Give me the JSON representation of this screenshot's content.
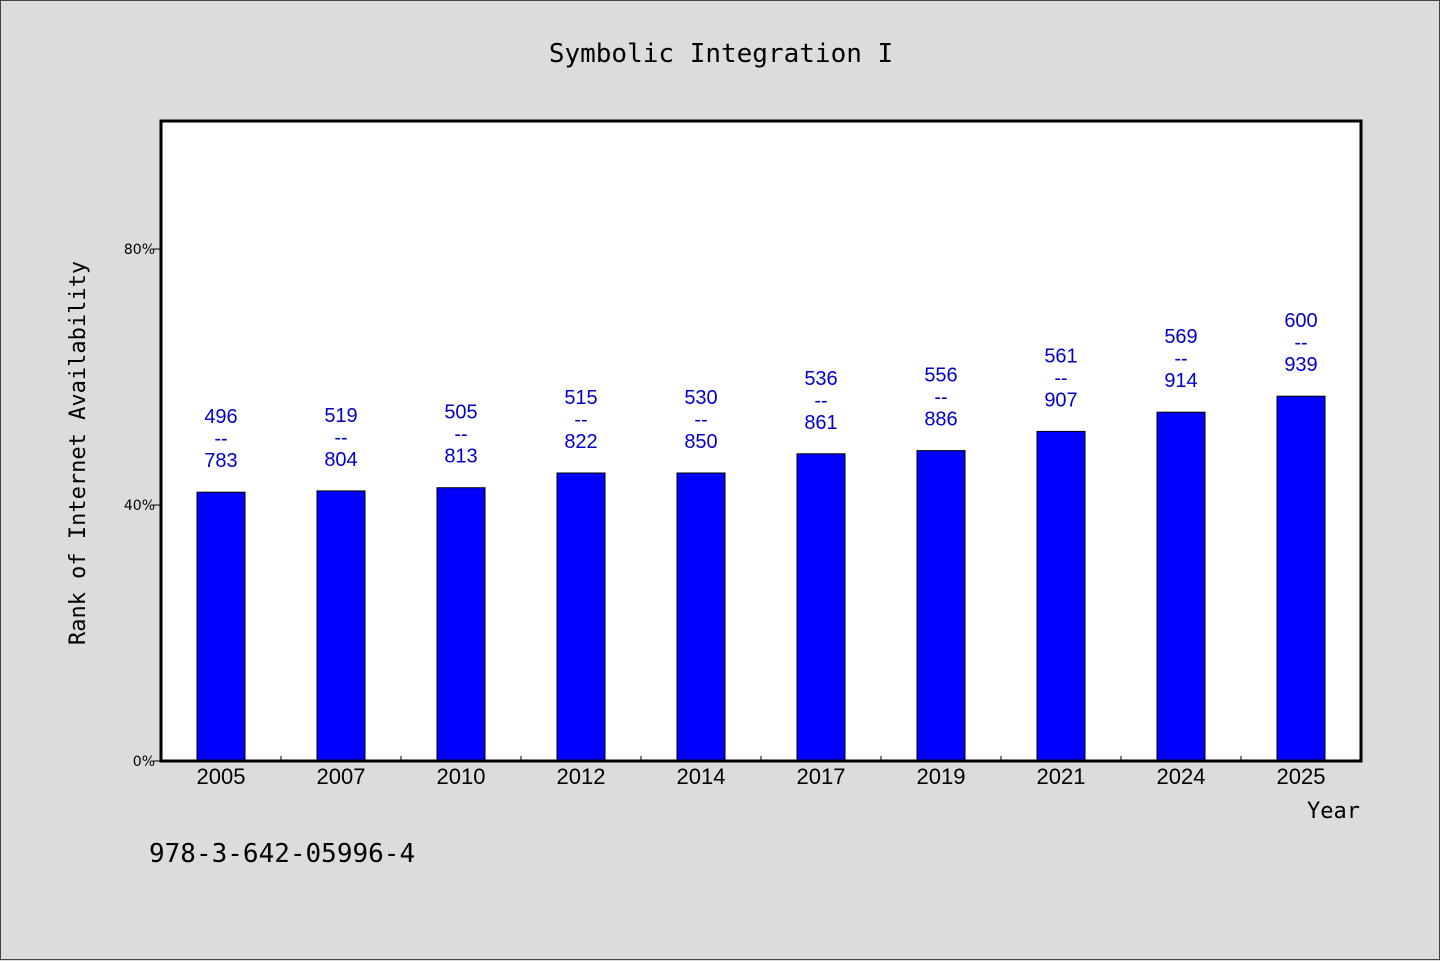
{
  "chart_data": {
    "type": "bar",
    "title": "Symbolic Integration I",
    "xlabel": "Year",
    "ylabel": "Rank of Internet Availability",
    "categories": [
      "2005",
      "2007",
      "2010",
      "2012",
      "2014",
      "2017",
      "2019",
      "2021",
      "2024",
      "2025"
    ],
    "values": [
      42,
      42.2,
      42.7,
      45,
      45,
      48,
      48.5,
      51.5,
      54.5,
      57
    ],
    "ylim": [
      0,
      100
    ],
    "yticks": [
      0,
      40,
      80
    ],
    "ytick_labels": [
      "0%",
      "40%",
      "80%"
    ],
    "data_labels": [
      [
        "496",
        "--",
        "783"
      ],
      [
        "519",
        "--",
        "804"
      ],
      [
        "505",
        "--",
        "813"
      ],
      [
        "515",
        "--",
        "822"
      ],
      [
        "530",
        "--",
        "850"
      ],
      [
        "536",
        "--",
        "861"
      ],
      [
        "556",
        "--",
        "886"
      ],
      [
        "561",
        "--",
        "907"
      ],
      [
        "569",
        "--",
        "914"
      ],
      [
        "600",
        "--",
        "939"
      ]
    ],
    "bar_color": "#0000ff",
    "label_color": "#0000cc",
    "grid": false,
    "legend": "none"
  },
  "footer": {
    "isbn": "978-3-642-05996-4"
  }
}
